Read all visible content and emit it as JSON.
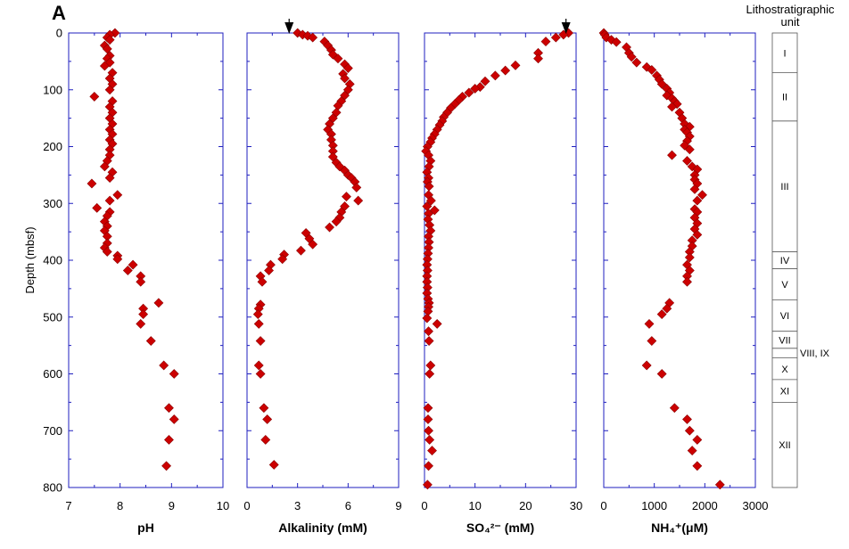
{
  "panel_letter": "A",
  "y_label": "Depth (mbsf)",
  "unit_header": [
    "Lithostratigraphic",
    "unit"
  ],
  "marker_color": "#cc0000",
  "frame_color": "#1f1fbf",
  "chart_data": [
    {
      "type": "scatter",
      "xlabel": "pH",
      "xlim": [
        7,
        10
      ],
      "xticks": [
        7,
        8,
        9,
        10
      ],
      "ylim": [
        0,
        800
      ],
      "yticks": [
        0,
        100,
        200,
        300,
        400,
        500,
        600,
        700,
        800
      ],
      "y_inverted": true,
      "points": [
        [
          7.9,
          0
        ],
        [
          7.8,
          3
        ],
        [
          7.75,
          8
        ],
        [
          7.8,
          12
        ],
        [
          7.7,
          22
        ],
        [
          7.75,
          28
        ],
        [
          7.8,
          40
        ],
        [
          7.75,
          45
        ],
        [
          7.8,
          52
        ],
        [
          7.7,
          58
        ],
        [
          7.85,
          70
        ],
        [
          7.8,
          80
        ],
        [
          7.85,
          90
        ],
        [
          7.8,
          100
        ],
        [
          7.5,
          112
        ],
        [
          7.85,
          120
        ],
        [
          7.8,
          130
        ],
        [
          7.85,
          140
        ],
        [
          7.8,
          150
        ],
        [
          7.85,
          160
        ],
        [
          7.8,
          170
        ],
        [
          7.85,
          178
        ],
        [
          7.8,
          188
        ],
        [
          7.85,
          195
        ],
        [
          7.8,
          205
        ],
        [
          7.8,
          215
        ],
        [
          7.75,
          225
        ],
        [
          7.7,
          235
        ],
        [
          7.85,
          245
        ],
        [
          7.8,
          255
        ],
        [
          7.45,
          265
        ],
        [
          7.95,
          285
        ],
        [
          7.8,
          295
        ],
        [
          7.55,
          308
        ],
        [
          7.8,
          315
        ],
        [
          7.75,
          322
        ],
        [
          7.7,
          332
        ],
        [
          7.75,
          340
        ],
        [
          7.7,
          348
        ],
        [
          7.75,
          358
        ],
        [
          7.75,
          370
        ],
        [
          7.7,
          378
        ],
        [
          7.75,
          385
        ],
        [
          7.95,
          392
        ],
        [
          7.95,
          398
        ],
        [
          8.25,
          408
        ],
        [
          8.15,
          418
        ],
        [
          8.4,
          428
        ],
        [
          8.4,
          438
        ],
        [
          8.75,
          475
        ],
        [
          8.45,
          485
        ],
        [
          8.45,
          495
        ],
        [
          8.4,
          512
        ],
        [
          8.6,
          542
        ],
        [
          8.85,
          585
        ],
        [
          9.05,
          600
        ],
        [
          8.95,
          660
        ],
        [
          9.05,
          680
        ],
        [
          8.95,
          716
        ],
        [
          8.9,
          762
        ]
      ]
    },
    {
      "type": "scatter",
      "xlabel": "Alkalinity   (mM)",
      "xlim": [
        0,
        9
      ],
      "xticks": [
        0,
        3,
        6,
        9
      ],
      "ylim": [
        0,
        800
      ],
      "y_inverted": true,
      "top_arrow_at": 2.5,
      "points": [
        [
          3.0,
          0
        ],
        [
          3.3,
          3
        ],
        [
          3.6,
          5
        ],
        [
          3.9,
          8
        ],
        [
          4.6,
          15
        ],
        [
          4.8,
          22
        ],
        [
          5.0,
          30
        ],
        [
          5.1,
          38
        ],
        [
          5.4,
          45
        ],
        [
          5.8,
          55
        ],
        [
          6.0,
          62
        ],
        [
          5.7,
          72
        ],
        [
          5.8,
          80
        ],
        [
          6.1,
          90
        ],
        [
          6.0,
          100
        ],
        [
          5.8,
          110
        ],
        [
          5.6,
          120
        ],
        [
          5.4,
          128
        ],
        [
          5.3,
          140
        ],
        [
          5.1,
          150
        ],
        [
          4.9,
          160
        ],
        [
          4.8,
          170
        ],
        [
          5.0,
          178
        ],
        [
          5.0,
          188
        ],
        [
          5.1,
          198
        ],
        [
          5.1,
          208
        ],
        [
          5.1,
          218
        ],
        [
          5.3,
          228
        ],
        [
          5.5,
          235
        ],
        [
          5.8,
          242
        ],
        [
          6.0,
          250
        ],
        [
          6.2,
          255
        ],
        [
          6.4,
          262
        ],
        [
          6.5,
          272
        ],
        [
          5.9,
          288
        ],
        [
          6.6,
          295
        ],
        [
          5.8,
          305
        ],
        [
          5.6,
          315
        ],
        [
          5.5,
          325
        ],
        [
          5.3,
          332
        ],
        [
          4.9,
          342
        ],
        [
          3.5,
          352
        ],
        [
          3.7,
          362
        ],
        [
          3.9,
          372
        ],
        [
          3.2,
          383
        ],
        [
          2.2,
          390
        ],
        [
          2.1,
          398
        ],
        [
          1.4,
          408
        ],
        [
          1.3,
          418
        ],
        [
          0.8,
          428
        ],
        [
          0.9,
          438
        ],
        [
          0.8,
          478
        ],
        [
          0.7,
          485
        ],
        [
          0.65,
          495
        ],
        [
          0.7,
          512
        ],
        [
          0.8,
          542
        ],
        [
          0.7,
          585
        ],
        [
          0.8,
          600
        ],
        [
          1.0,
          660
        ],
        [
          1.2,
          680
        ],
        [
          1.1,
          716
        ],
        [
          1.6,
          760
        ]
      ]
    },
    {
      "type": "scatter",
      "xlabel": "SO₄²⁻ (mM)",
      "xlim": [
        0,
        30
      ],
      "xticks": [
        0,
        10,
        20,
        30
      ],
      "ylim": [
        0,
        800
      ],
      "y_inverted": true,
      "top_arrow_at": 28,
      "points": [
        [
          28.5,
          0
        ],
        [
          27.5,
          3
        ],
        [
          26,
          8
        ],
        [
          24,
          15
        ],
        [
          22.5,
          35
        ],
        [
          22.5,
          45
        ],
        [
          18,
          57
        ],
        [
          16,
          66
        ],
        [
          14,
          75
        ],
        [
          12,
          85
        ],
        [
          11,
          95
        ],
        [
          10,
          98
        ],
        [
          8.8,
          105
        ],
        [
          7.5,
          112
        ],
        [
          6.8,
          118
        ],
        [
          6.0,
          125
        ],
        [
          5.2,
          132
        ],
        [
          4.5,
          140
        ],
        [
          3.8,
          148
        ],
        [
          3.5,
          155
        ],
        [
          3.0,
          162
        ],
        [
          2.5,
          170
        ],
        [
          2.0,
          178
        ],
        [
          1.5,
          185
        ],
        [
          1.2,
          192
        ],
        [
          0.6,
          200
        ],
        [
          0.3,
          208
        ],
        [
          0.8,
          215
        ],
        [
          1.2,
          225
        ],
        [
          0.9,
          235
        ],
        [
          0.5,
          245
        ],
        [
          0.8,
          255
        ],
        [
          0.6,
          262
        ],
        [
          0.9,
          270
        ],
        [
          0.8,
          285
        ],
        [
          1.3,
          295
        ],
        [
          0.5,
          305
        ],
        [
          2.0,
          312
        ],
        [
          0.8,
          318
        ],
        [
          0.7,
          328
        ],
        [
          1.0,
          338
        ],
        [
          1.2,
          348
        ],
        [
          0.8,
          358
        ],
        [
          0.9,
          368
        ],
        [
          0.8,
          378
        ],
        [
          0.7,
          388
        ],
        [
          0.6,
          398
        ],
        [
          0.5,
          408
        ],
        [
          0.6,
          418
        ],
        [
          0.5,
          428
        ],
        [
          0.5,
          438
        ],
        [
          0.6,
          448
        ],
        [
          0.5,
          458
        ],
        [
          0.7,
          468
        ],
        [
          0.9,
          475
        ],
        [
          0.8,
          482
        ],
        [
          0.7,
          490
        ],
        [
          0.5,
          502
        ],
        [
          2.5,
          512
        ],
        [
          0.8,
          525
        ],
        [
          0.9,
          542
        ],
        [
          1.2,
          585
        ],
        [
          1.0,
          600
        ],
        [
          0.7,
          660
        ],
        [
          0.7,
          680
        ],
        [
          0.8,
          700
        ],
        [
          1.0,
          716
        ],
        [
          1.5,
          735
        ],
        [
          0.8,
          762
        ],
        [
          0.6,
          795
        ]
      ]
    },
    {
      "type": "scatter",
      "xlabel": "NH₄⁺(μM)",
      "xlim": [
        0,
        3000
      ],
      "xticks": [
        0,
        1000,
        2000,
        3000
      ],
      "ylim": [
        0,
        800
      ],
      "y_inverted": true,
      "points": [
        [
          0,
          0
        ],
        [
          20,
          3
        ],
        [
          50,
          8
        ],
        [
          150,
          12
        ],
        [
          250,
          16
        ],
        [
          450,
          25
        ],
        [
          500,
          35
        ],
        [
          550,
          42
        ],
        [
          650,
          52
        ],
        [
          850,
          60
        ],
        [
          950,
          65
        ],
        [
          1050,
          75
        ],
        [
          1100,
          82
        ],
        [
          1150,
          90
        ],
        [
          1250,
          98
        ],
        [
          1300,
          105
        ],
        [
          1250,
          110
        ],
        [
          1350,
          115
        ],
        [
          1400,
          120
        ],
        [
          1450,
          125
        ],
        [
          1350,
          130
        ],
        [
          1500,
          140
        ],
        [
          1550,
          150
        ],
        [
          1600,
          160
        ],
        [
          1700,
          165
        ],
        [
          1600,
          170
        ],
        [
          1650,
          175
        ],
        [
          1700,
          182
        ],
        [
          1650,
          190
        ],
        [
          1600,
          198
        ],
        [
          1700,
          205
        ],
        [
          1350,
          215
        ],
        [
          1650,
          225
        ],
        [
          1750,
          235
        ],
        [
          1850,
          240
        ],
        [
          1800,
          250
        ],
        [
          1800,
          258
        ],
        [
          1850,
          265
        ],
        [
          1800,
          275
        ],
        [
          1950,
          285
        ],
        [
          1850,
          295
        ],
        [
          1800,
          310
        ],
        [
          1850,
          315
        ],
        [
          1800,
          325
        ],
        [
          1850,
          335
        ],
        [
          1800,
          345
        ],
        [
          1850,
          355
        ],
        [
          1750,
          365
        ],
        [
          1750,
          375
        ],
        [
          1700,
          385
        ],
        [
          1700,
          395
        ],
        [
          1650,
          408
        ],
        [
          1700,
          418
        ],
        [
          1650,
          428
        ],
        [
          1650,
          438
        ],
        [
          1300,
          475
        ],
        [
          1250,
          485
        ],
        [
          1150,
          495
        ],
        [
          900,
          512
        ],
        [
          950,
          542
        ],
        [
          850,
          585
        ],
        [
          1150,
          600
        ],
        [
          1400,
          660
        ],
        [
          1650,
          680
        ],
        [
          1700,
          700
        ],
        [
          1850,
          716
        ],
        [
          1750,
          735
        ],
        [
          1850,
          762
        ],
        [
          2300,
          795
        ]
      ]
    }
  ],
  "litho_units": [
    {
      "label": "I",
      "top": 0,
      "bottom": 70
    },
    {
      "label": "II",
      "top": 70,
      "bottom": 155
    },
    {
      "label": "III",
      "top": 155,
      "bottom": 385
    },
    {
      "label": "IV",
      "top": 385,
      "bottom": 415
    },
    {
      "label": "V",
      "top": 415,
      "bottom": 470
    },
    {
      "label": "VI",
      "top": 470,
      "bottom": 525
    },
    {
      "label": "VII",
      "top": 525,
      "bottom": 555
    },
    {
      "label": "VIII, IX",
      "top": 555,
      "bottom": 572,
      "outside": true
    },
    {
      "label": "X",
      "top": 572,
      "bottom": 610
    },
    {
      "label": "XI",
      "top": 610,
      "bottom": 650
    },
    {
      "label": "XII",
      "top": 650,
      "bottom": 800
    }
  ]
}
